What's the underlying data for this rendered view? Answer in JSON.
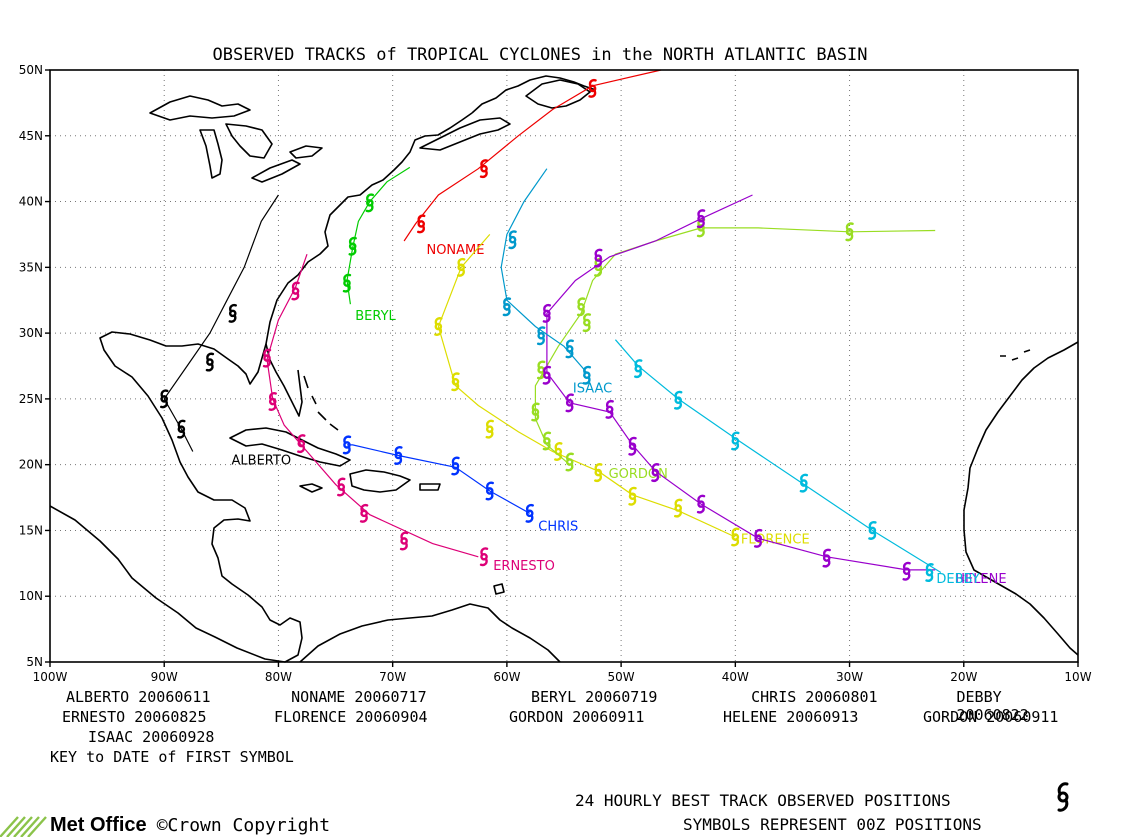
{
  "title": "OBSERVED TRACKS of TROPICAL CYCLONES in the NORTH ATLANTIC BASIN",
  "axes": {
    "lon_range": [
      -100,
      -10
    ],
    "lat_range": [
      5,
      50
    ],
    "lon_ticks": [
      {
        "value": -100,
        "label": "100W"
      },
      {
        "value": -90,
        "label": "90W"
      },
      {
        "value": -80,
        "label": "80W"
      },
      {
        "value": -70,
        "label": "70W"
      },
      {
        "value": -60,
        "label": "60W"
      },
      {
        "value": -50,
        "label": "50W"
      },
      {
        "value": -40,
        "label": "40W"
      },
      {
        "value": -30,
        "label": "30W"
      },
      {
        "value": -20,
        "label": "20W"
      },
      {
        "value": -10,
        "label": "10W"
      }
    ],
    "lat_ticks": [
      {
        "value": 5,
        "label": "5N"
      },
      {
        "value": 10,
        "label": "10N"
      },
      {
        "value": 15,
        "label": "15N"
      },
      {
        "value": 20,
        "label": "20N"
      },
      {
        "value": 25,
        "label": "25N"
      },
      {
        "value": 30,
        "label": "30N"
      },
      {
        "value": 35,
        "label": "35N"
      },
      {
        "value": 40,
        "label": "40N"
      },
      {
        "value": 45,
        "label": "45N"
      },
      {
        "value": 50,
        "label": "50N"
      }
    ],
    "grid": "dotted"
  },
  "storms": [
    {
      "name": "ALBERTO",
      "color": "#000000",
      "label_at": [
        -81.5,
        20
      ],
      "track": [
        [
          -87.5,
          21
        ],
        [
          -88.5,
          22.7
        ],
        [
          -90,
          25
        ],
        [
          -88,
          27.5
        ],
        [
          -86,
          30
        ],
        [
          -84.5,
          32.5
        ],
        [
          -83,
          35
        ],
        [
          -81.5,
          38.5
        ],
        [
          -80,
          40.5
        ]
      ],
      "points": [
        [
          -88.5,
          22.7
        ],
        [
          -90,
          25
        ],
        [
          -86,
          27.8
        ],
        [
          -84,
          31.5
        ]
      ]
    },
    {
      "name": "NONAME",
      "color": "#ee0000",
      "label_at": [
        -64.5,
        36
      ],
      "track": [
        [
          -69,
          37
        ],
        [
          -68,
          38.3
        ],
        [
          -66,
          40.5
        ],
        [
          -62.5,
          42.5
        ],
        [
          -59,
          45
        ],
        [
          -56,
          47
        ],
        [
          -52.5,
          48.8
        ],
        [
          -46.5,
          50
        ]
      ],
      "points": [
        [
          -67.5,
          38.3
        ],
        [
          -62,
          42.5
        ],
        [
          -52.5,
          48.6
        ]
      ]
    },
    {
      "name": "BERYL",
      "color": "#00cc00",
      "label_at": [
        -71.5,
        31
      ],
      "track": [
        [
          -73.7,
          32.2
        ],
        [
          -74,
          34
        ],
        [
          -73.5,
          36.5
        ],
        [
          -73,
          38.5
        ],
        [
          -72,
          40
        ],
        [
          -70.5,
          41.5
        ],
        [
          -68.5,
          42.6
        ]
      ],
      "points": [
        [
          -74,
          33.8
        ],
        [
          -73.5,
          36.6
        ],
        [
          -72,
          39.9
        ]
      ]
    },
    {
      "name": "CHRIS",
      "color": "#0033ff",
      "label_at": [
        -55.5,
        15
      ],
      "track": [
        [
          -58,
          16.3
        ],
        [
          -61.5,
          18
        ],
        [
          -64.5,
          19.8
        ],
        [
          -69.5,
          20.7
        ],
        [
          -73.5,
          21.5
        ],
        [
          -74,
          21.5
        ]
      ],
      "points": [
        [
          -58,
          16.3
        ],
        [
          -61.5,
          18
        ],
        [
          -64.5,
          19.9
        ],
        [
          -69.5,
          20.7
        ],
        [
          -74,
          21.5
        ]
      ]
    },
    {
      "name": "ERNESTO",
      "color": "#dd0077",
      "label_at": [
        -58.5,
        12
      ],
      "track": [
        [
          -62.5,
          13
        ],
        [
          -66.5,
          14
        ],
        [
          -72,
          16.2
        ],
        [
          -75,
          18.5
        ],
        [
          -77.5,
          21
        ],
        [
          -79.5,
          23
        ],
        [
          -80.5,
          25
        ],
        [
          -81,
          28
        ],
        [
          -80,
          31
        ],
        [
          -78.5,
          33.5
        ],
        [
          -77.5,
          36
        ]
      ],
      "points": [
        [
          -62,
          13
        ],
        [
          -69,
          14.2
        ],
        [
          -72.5,
          16.3
        ],
        [
          -74.5,
          18.3
        ],
        [
          -78,
          21.6
        ],
        [
          -80.5,
          24.8
        ],
        [
          -81,
          28.1
        ],
        [
          -78.5,
          33.2
        ]
      ]
    },
    {
      "name": "FLORENCE",
      "color": "#dddd00",
      "label_at": [
        -36.5,
        14
      ],
      "track": [
        [
          -40,
          14.5
        ],
        [
          -45,
          16.5
        ],
        [
          -49,
          17.7
        ],
        [
          -52,
          19.5
        ],
        [
          -56,
          21
        ],
        [
          -59,
          22.5
        ],
        [
          -62.5,
          24.5
        ],
        [
          -64.5,
          26
        ],
        [
          -66,
          30.5
        ],
        [
          -64,
          35
        ],
        [
          -61.5,
          37.5
        ]
      ],
      "points": [
        [
          -40,
          14.5
        ],
        [
          -45,
          16.7
        ],
        [
          -49,
          17.6
        ],
        [
          -52,
          19.4
        ],
        [
          -55.5,
          21
        ],
        [
          -61.5,
          22.7
        ],
        [
          -64.5,
          26.3
        ],
        [
          -66,
          30.5
        ],
        [
          -64,
          35
        ]
      ]
    },
    {
      "name": "GORDON",
      "color": "#99dd22",
      "label_at": [
        -48.5,
        19
      ],
      "track": [
        [
          -54.5,
          20
        ],
        [
          -56.5,
          21.5
        ],
        [
          -57.5,
          23.5
        ],
        [
          -57.5,
          26
        ],
        [
          -55.5,
          29
        ],
        [
          -53.5,
          31.5
        ],
        [
          -52.5,
          34
        ],
        [
          -50.5,
          36
        ],
        [
          -47,
          37
        ],
        [
          -43,
          38
        ],
        [
          -38,
          38
        ],
        [
          -30,
          37.7
        ],
        [
          -22.5,
          37.8
        ]
      ],
      "points": [
        [
          -54.5,
          20.2
        ],
        [
          -56.5,
          21.8
        ],
        [
          -57.5,
          24
        ],
        [
          -57,
          27.2
        ],
        [
          -53,
          30.8
        ],
        [
          -53.5,
          32
        ],
        [
          -52,
          35
        ],
        [
          -43,
          38
        ],
        [
          -30,
          37.7
        ]
      ]
    },
    {
      "name": "HELENE",
      "color": "#9900cc",
      "label_at": [
        -18.5,
        11
      ],
      "track": [
        [
          -22.5,
          12
        ],
        [
          -25,
          12
        ],
        [
          -32,
          13
        ],
        [
          -38,
          14.4
        ],
        [
          -43,
          17
        ],
        [
          -47,
          19.5
        ],
        [
          -49,
          21.5
        ],
        [
          -51,
          24
        ],
        [
          -54.5,
          24.7
        ],
        [
          -56.5,
          27
        ],
        [
          -56.5,
          31.5
        ],
        [
          -54,
          34
        ],
        [
          -51,
          35.8
        ],
        [
          -47,
          37
        ],
        [
          -43,
          38.7
        ],
        [
          -38.5,
          40.5
        ]
      ],
      "points": [
        [
          -25,
          11.9
        ],
        [
          -32,
          12.9
        ],
        [
          -38,
          14.4
        ],
        [
          -43,
          17
        ],
        [
          -47,
          19.4
        ],
        [
          -49,
          21.4
        ],
        [
          -51,
          24.2
        ],
        [
          -54.5,
          24.7
        ],
        [
          -56.5,
          26.8
        ],
        [
          -56.5,
          31.5
        ],
        [
          -52,
          35.7
        ],
        [
          -43,
          38.7
        ]
      ]
    },
    {
      "name": "ISAAC",
      "color": "#0099cc",
      "label_at": [
        -52.5,
        25.5
      ],
      "track": [
        [
          -53,
          27
        ],
        [
          -55,
          29
        ],
        [
          -57.5,
          30.5
        ],
        [
          -60,
          32.5
        ],
        [
          -60.5,
          35
        ],
        [
          -60,
          37.5
        ],
        [
          -58.5,
          40
        ],
        [
          -56.5,
          42.5
        ]
      ],
      "points": [
        [
          -53,
          26.8
        ],
        [
          -54.5,
          28.8
        ],
        [
          -57,
          29.8
        ],
        [
          -60,
          32
        ],
        [
          -59.5,
          37.1
        ]
      ]
    },
    {
      "name": "DEBBY",
      "color": "#00bbdd",
      "label_at": [
        -20.5,
        11
      ],
      "track": [
        [
          -22,
          11.8
        ],
        [
          -28,
          15
        ],
        [
          -34,
          18.5
        ],
        [
          -40,
          22
        ],
        [
          -45,
          25
        ],
        [
          -48.5,
          27.5
        ],
        [
          -50.5,
          29.5
        ]
      ],
      "points": [
        [
          -23,
          11.8
        ],
        [
          -28,
          15
        ],
        [
          -34,
          18.6
        ],
        [
          -40,
          21.8
        ],
        [
          -45,
          24.9
        ],
        [
          -48.5,
          27.3
        ]
      ]
    }
  ],
  "key": {
    "rows": [
      [
        "ALBERTO 20060611",
        "NONAME 20060717",
        "BERYL 20060719",
        "CHRIS 20060801",
        "DEBBY 20060822"
      ],
      [
        "ERNESTO 20060825",
        "FLORENCE 20060904",
        "GORDON 20060911",
        "HELENE 20060913",
        "GORDON 20060911"
      ],
      [
        "ISAAC 20060928",
        "",
        "",
        "",
        ""
      ]
    ],
    "caption": "KEY to DATE of FIRST SYMBOL"
  },
  "footer": {
    "logo_text": "Met Office",
    "copyright": "©Crown Copyright",
    "line1": "24 HOURLY BEST TRACK OBSERVED POSITIONS",
    "line2": "SYMBOLS REPRESENT 00Z POSITIONS",
    "symbol_icon": "hurricane-symbol-icon"
  }
}
